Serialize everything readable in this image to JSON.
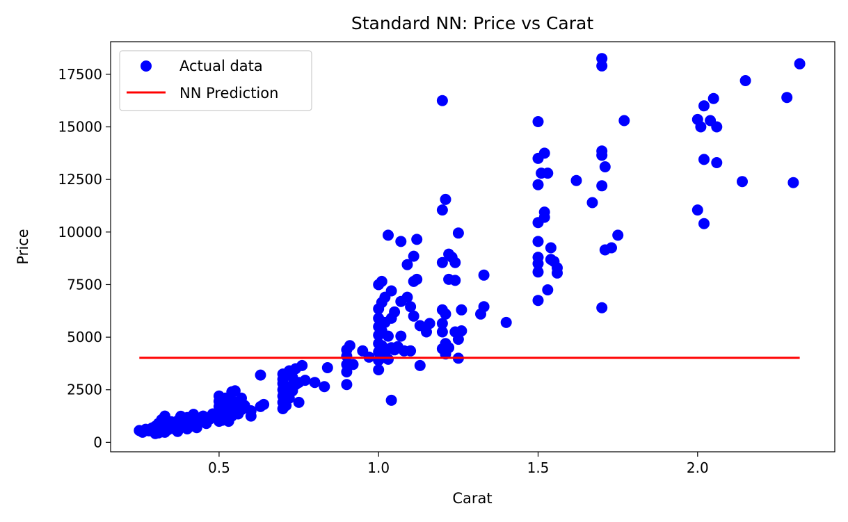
{
  "chart_data": {
    "type": "scatter",
    "title": "Standard NN: Price vs Carat",
    "xlabel": "Carat",
    "ylabel": "Price",
    "xlim": [
      0.16,
      2.43
    ],
    "ylim": [
      -450,
      19050
    ],
    "xticks": [
      0.5,
      1.0,
      1.5,
      2.0
    ],
    "xtick_labels": [
      "0.5",
      "1.0",
      "1.5",
      "2.0"
    ],
    "yticks": [
      0,
      2500,
      5000,
      7500,
      10000,
      12500,
      15000,
      17500
    ],
    "ytick_labels": [
      "0",
      "2500",
      "5000",
      "7500",
      "10000",
      "12500",
      "15000",
      "17500"
    ],
    "grid": false,
    "legend_position": "upper-left",
    "series": [
      {
        "name": "Actual data",
        "kind": "scatter",
        "color": "#0000ff",
        "points": [
          [
            0.25,
            560
          ],
          [
            0.26,
            480
          ],
          [
            0.27,
            620
          ],
          [
            0.28,
            550
          ],
          [
            0.29,
            680
          ],
          [
            0.3,
            420
          ],
          [
            0.3,
            610
          ],
          [
            0.3,
            760
          ],
          [
            0.31,
            450
          ],
          [
            0.31,
            640
          ],
          [
            0.31,
            900
          ],
          [
            0.32,
            500
          ],
          [
            0.32,
            700
          ],
          [
            0.32,
            1080
          ],
          [
            0.33,
            480
          ],
          [
            0.33,
            820
          ],
          [
            0.33,
            1250
          ],
          [
            0.34,
            600
          ],
          [
            0.35,
            750
          ],
          [
            0.35,
            980
          ],
          [
            0.36,
            640
          ],
          [
            0.36,
            880
          ],
          [
            0.37,
            520
          ],
          [
            0.37,
            1020
          ],
          [
            0.38,
            700
          ],
          [
            0.38,
            1240
          ],
          [
            0.39,
            820
          ],
          [
            0.4,
            640
          ],
          [
            0.4,
            950
          ],
          [
            0.4,
            1180
          ],
          [
            0.41,
            760
          ],
          [
            0.41,
            1050
          ],
          [
            0.42,
            880
          ],
          [
            0.42,
            1330
          ],
          [
            0.43,
            700
          ],
          [
            0.43,
            1150
          ],
          [
            0.44,
            980
          ],
          [
            0.45,
            1250
          ],
          [
            0.46,
            900
          ],
          [
            0.47,
            1100
          ],
          [
            0.48,
            1350
          ],
          [
            0.5,
            1000
          ],
          [
            0.5,
            1200
          ],
          [
            0.5,
            1450
          ],
          [
            0.5,
            1700
          ],
          [
            0.5,
            1950
          ],
          [
            0.5,
            2200
          ],
          [
            0.51,
            1050
          ],
          [
            0.51,
            1600
          ],
          [
            0.52,
            1300
          ],
          [
            0.52,
            1900
          ],
          [
            0.52,
            2100
          ],
          [
            0.53,
            1000
          ],
          [
            0.53,
            1500
          ],
          [
            0.53,
            1800
          ],
          [
            0.54,
            1250
          ],
          [
            0.54,
            2000
          ],
          [
            0.54,
            2400
          ],
          [
            0.55,
            1400
          ],
          [
            0.55,
            1700
          ],
          [
            0.55,
            2450
          ],
          [
            0.56,
            1350
          ],
          [
            0.56,
            1900
          ],
          [
            0.57,
            1550
          ],
          [
            0.57,
            2100
          ],
          [
            0.58,
            1750
          ],
          [
            0.6,
            1250
          ],
          [
            0.6,
            1500
          ],
          [
            0.63,
            1700
          ],
          [
            0.63,
            3200
          ],
          [
            0.64,
            1800
          ],
          [
            0.7,
            1600
          ],
          [
            0.7,
            1900
          ],
          [
            0.7,
            2200
          ],
          [
            0.7,
            2500
          ],
          [
            0.7,
            2800
          ],
          [
            0.7,
            3000
          ],
          [
            0.7,
            3250
          ],
          [
            0.71,
            1750
          ],
          [
            0.71,
            2350
          ],
          [
            0.72,
            2100
          ],
          [
            0.72,
            2650
          ],
          [
            0.72,
            3400
          ],
          [
            0.73,
            2450
          ],
          [
            0.73,
            3100
          ],
          [
            0.74,
            2750
          ],
          [
            0.74,
            3500
          ],
          [
            0.75,
            1900
          ],
          [
            0.75,
            2850
          ],
          [
            0.76,
            3650
          ],
          [
            0.77,
            2950
          ],
          [
            0.8,
            2850
          ],
          [
            0.83,
            2650
          ],
          [
            0.84,
            3550
          ],
          [
            0.9,
            2750
          ],
          [
            0.9,
            3350
          ],
          [
            0.9,
            3700
          ],
          [
            0.9,
            4100
          ],
          [
            0.9,
            4400
          ],
          [
            0.91,
            4600
          ],
          [
            0.92,
            3700
          ],
          [
            0.95,
            4350
          ],
          [
            0.97,
            4050
          ],
          [
            1.0,
            3450
          ],
          [
            1.0,
            3900
          ],
          [
            1.0,
            4300
          ],
          [
            1.0,
            4700
          ],
          [
            1.0,
            5100
          ],
          [
            1.0,
            5500
          ],
          [
            1.0,
            5900
          ],
          [
            1.0,
            6350
          ],
          [
            1.0,
            7500
          ],
          [
            1.01,
            4050
          ],
          [
            1.01,
            4600
          ],
          [
            1.01,
            5300
          ],
          [
            1.01,
            6650
          ],
          [
            1.01,
            7650
          ],
          [
            1.02,
            4200
          ],
          [
            1.02,
            5700
          ],
          [
            1.02,
            6900
          ],
          [
            1.03,
            3950
          ],
          [
            1.03,
            5050
          ],
          [
            1.03,
            9850
          ],
          [
            1.04,
            2000
          ],
          [
            1.04,
            4500
          ],
          [
            1.04,
            5900
          ],
          [
            1.04,
            7200
          ],
          [
            1.05,
            4400
          ],
          [
            1.05,
            6200
          ],
          [
            1.06,
            4550
          ],
          [
            1.07,
            5050
          ],
          [
            1.07,
            6700
          ],
          [
            1.07,
            9550
          ],
          [
            1.08,
            4350
          ],
          [
            1.09,
            6900
          ],
          [
            1.09,
            8450
          ],
          [
            1.1,
            4350
          ],
          [
            1.1,
            6450
          ],
          [
            1.11,
            6000
          ],
          [
            1.11,
            7650
          ],
          [
            1.11,
            8850
          ],
          [
            1.12,
            7750
          ],
          [
            1.12,
            9650
          ],
          [
            1.13,
            3650
          ],
          [
            1.13,
            5550
          ],
          [
            1.15,
            5250
          ],
          [
            1.16,
            5650
          ],
          [
            1.2,
            4450
          ],
          [
            1.2,
            5250
          ],
          [
            1.2,
            5650
          ],
          [
            1.2,
            6300
          ],
          [
            1.2,
            8550
          ],
          [
            1.2,
            11050
          ],
          [
            1.2,
            16250
          ],
          [
            1.21,
            4200
          ],
          [
            1.21,
            4700
          ],
          [
            1.21,
            6100
          ],
          [
            1.21,
            11550
          ],
          [
            1.22,
            4500
          ],
          [
            1.22,
            7750
          ],
          [
            1.22,
            8950
          ],
          [
            1.23,
            8800
          ],
          [
            1.24,
            5250
          ],
          [
            1.24,
            7700
          ],
          [
            1.24,
            8550
          ],
          [
            1.25,
            4000
          ],
          [
            1.25,
            4900
          ],
          [
            1.25,
            9950
          ],
          [
            1.26,
            5300
          ],
          [
            1.26,
            6300
          ],
          [
            1.32,
            6100
          ],
          [
            1.33,
            6450
          ],
          [
            1.33,
            7950
          ],
          [
            1.4,
            5700
          ],
          [
            1.5,
            6750
          ],
          [
            1.5,
            8100
          ],
          [
            1.5,
            8500
          ],
          [
            1.5,
            8800
          ],
          [
            1.5,
            9550
          ],
          [
            1.5,
            10450
          ],
          [
            1.5,
            12250
          ],
          [
            1.5,
            13500
          ],
          [
            1.5,
            15250
          ],
          [
            1.51,
            12800
          ],
          [
            1.52,
            10700
          ],
          [
            1.52,
            10950
          ],
          [
            1.52,
            13750
          ],
          [
            1.53,
            7250
          ],
          [
            1.53,
            12800
          ],
          [
            1.54,
            9250
          ],
          [
            1.54,
            8700
          ],
          [
            1.55,
            8600
          ],
          [
            1.56,
            8050
          ],
          [
            1.56,
            8300
          ],
          [
            1.62,
            12450
          ],
          [
            1.67,
            11400
          ],
          [
            1.7,
            6400
          ],
          [
            1.7,
            12200
          ],
          [
            1.7,
            13650
          ],
          [
            1.7,
            13850
          ],
          [
            1.7,
            17900
          ],
          [
            1.7,
            18250
          ],
          [
            1.71,
            9150
          ],
          [
            1.71,
            13100
          ],
          [
            1.73,
            9250
          ],
          [
            1.75,
            9850
          ],
          [
            1.77,
            15300
          ],
          [
            2.0,
            11050
          ],
          [
            2.0,
            15350
          ],
          [
            2.01,
            15000
          ],
          [
            2.02,
            13450
          ],
          [
            2.02,
            10400
          ],
          [
            2.02,
            16000
          ],
          [
            2.04,
            15300
          ],
          [
            2.05,
            16350
          ],
          [
            2.06,
            13300
          ],
          [
            2.06,
            15000
          ],
          [
            2.14,
            12400
          ],
          [
            2.15,
            17200
          ],
          [
            2.28,
            16400
          ],
          [
            2.3,
            12350
          ],
          [
            2.32,
            18000
          ]
        ]
      },
      {
        "name": "NN Prediction",
        "kind": "line",
        "color": "#ff0000",
        "points": [
          [
            0.25,
            4020
          ],
          [
            2.32,
            4020
          ]
        ]
      }
    ]
  }
}
